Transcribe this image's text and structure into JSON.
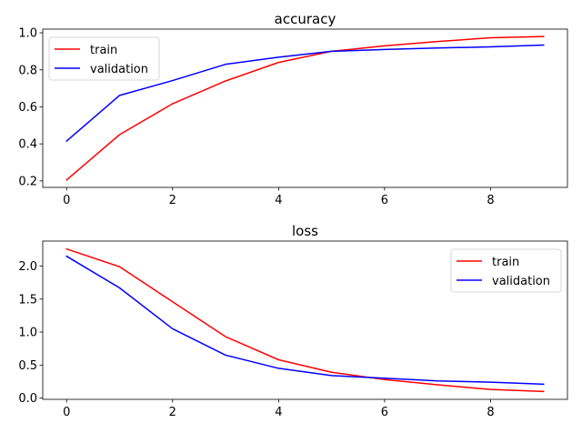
{
  "chart_data": [
    {
      "type": "line",
      "title": "accuracy",
      "xlabel": "",
      "ylabel": "",
      "x": [
        0,
        1,
        2,
        3,
        4,
        5,
        6,
        7,
        8,
        9
      ],
      "xlim": [
        -0.45,
        9.45
      ],
      "ylim": [
        0.165,
        1.02
      ],
      "xticks": [
        0,
        2,
        4,
        6,
        8
      ],
      "yticks": [
        0.2,
        0.4,
        0.6,
        0.8,
        1.0
      ],
      "ytick_labels": [
        "0.2",
        "0.4",
        "0.6",
        "0.8",
        "1.0"
      ],
      "legend_position": "upper-left",
      "grid": false,
      "series": [
        {
          "name": "train",
          "color": "#ff0000",
          "values": [
            0.205,
            0.45,
            0.617,
            0.74,
            0.84,
            0.9,
            0.93,
            0.953,
            0.973,
            0.98
          ]
        },
        {
          "name": "validation",
          "color": "#0000ff",
          "values": [
            0.415,
            0.662,
            0.742,
            0.83,
            0.868,
            0.9,
            0.91,
            0.918,
            0.924,
            0.934
          ]
        }
      ]
    },
    {
      "type": "line",
      "title": "loss",
      "xlabel": "",
      "ylabel": "",
      "x": [
        0,
        1,
        2,
        3,
        4,
        5,
        6,
        7,
        8,
        9
      ],
      "xlim": [
        -0.45,
        9.45
      ],
      "ylim": [
        -0.02,
        2.38
      ],
      "xticks": [
        0,
        2,
        4,
        6,
        8
      ],
      "yticks": [
        0.0,
        0.5,
        1.0,
        1.5,
        2.0
      ],
      "ytick_labels": [
        "0.0",
        "0.5",
        "1.0",
        "1.5",
        "2.0"
      ],
      "legend_position": "upper-right",
      "grid": false,
      "series": [
        {
          "name": "train",
          "color": "#ff0000",
          "values": [
            2.26,
            1.99,
            1.46,
            0.93,
            0.58,
            0.39,
            0.28,
            0.2,
            0.13,
            0.1
          ]
        },
        {
          "name": "validation",
          "color": "#0000ff",
          "values": [
            2.15,
            1.67,
            1.05,
            0.65,
            0.45,
            0.34,
            0.3,
            0.26,
            0.24,
            0.21
          ]
        }
      ]
    }
  ]
}
